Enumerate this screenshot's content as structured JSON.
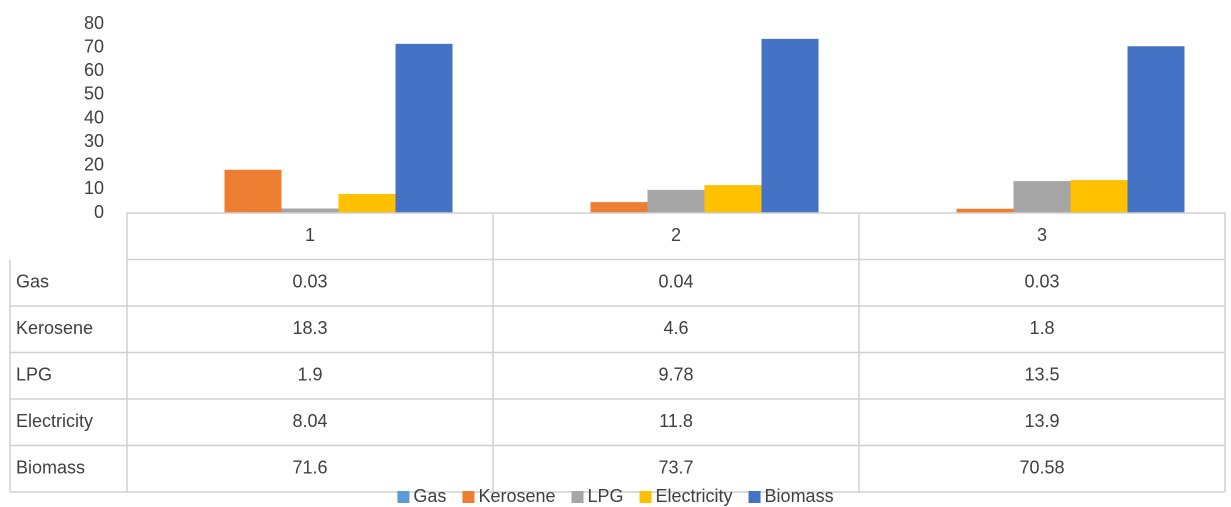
{
  "chart_data": {
    "type": "bar",
    "categories": [
      "1",
      "2",
      "3"
    ],
    "series": [
      {
        "name": "Gas",
        "color": "#5B9BD5",
        "values": [
          0.03,
          0.04,
          0.03
        ]
      },
      {
        "name": "Kerosene",
        "color": "#ED7D31",
        "values": [
          18.3,
          4.6,
          1.8
        ]
      },
      {
        "name": "LPG",
        "color": "#A5A5A5",
        "values": [
          1.9,
          9.78,
          13.5
        ]
      },
      {
        "name": "Electricity",
        "color": "#FFC000",
        "values": [
          8.04,
          11.8,
          13.9
        ]
      },
      {
        "name": "Biomass",
        "color": "#4472C4",
        "values": [
          71.6,
          73.7,
          70.58
        ]
      }
    ],
    "ylim": [
      0,
      80
    ],
    "yticks": [
      0,
      10,
      20,
      30,
      40,
      50,
      60,
      70,
      80
    ],
    "grid": false,
    "data_table": true,
    "legend": "bottom"
  }
}
